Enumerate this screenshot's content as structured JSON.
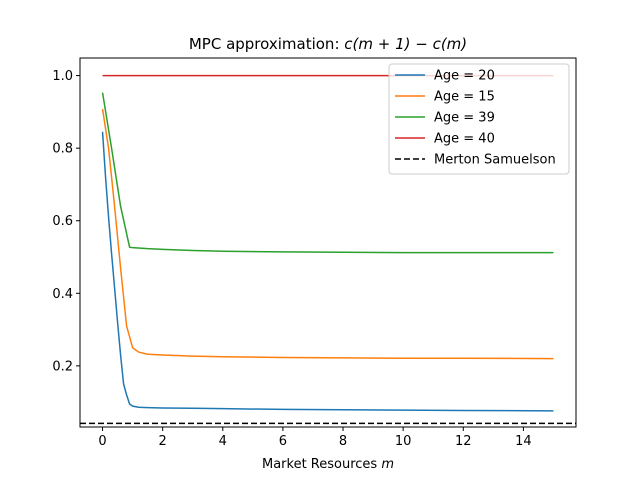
{
  "chart_data": {
    "type": "line",
    "title_prefix": "MPC approximation: ",
    "title_math": "c(m + 1) − c(m)",
    "xlabel_prefix": "Market Resources ",
    "xlabel_math": "m",
    "ylabel": "",
    "xlim": [
      -0.75,
      15.75
    ],
    "ylim": [
      0.0315,
      1.0485
    ],
    "x_ticks": [
      0,
      2,
      4,
      6,
      8,
      10,
      12,
      14
    ],
    "x_tick_labels": [
      "0",
      "2",
      "4",
      "6",
      "8",
      "10",
      "12",
      "14"
    ],
    "y_ticks": [
      0.2,
      0.4,
      0.6,
      0.8,
      1.0
    ],
    "y_tick_labels": [
      "0.2",
      "0.4",
      "0.6",
      "0.8",
      "1.0"
    ],
    "grid": false,
    "legend_position": "top-right",
    "series": [
      {
        "name": "Age = 20",
        "color": "#1f77b4",
        "style": "solid",
        "x": [
          0,
          0.1,
          0.2,
          0.3,
          0.4,
          0.5,
          0.6,
          0.7,
          0.8,
          0.9,
          1.0,
          1.2,
          1.5,
          2,
          3,
          4,
          6,
          8,
          10,
          12,
          15
        ],
        "y": [
          0.845,
          0.72,
          0.61,
          0.51,
          0.415,
          0.32,
          0.23,
          0.15,
          0.12,
          0.095,
          0.089,
          0.086,
          0.085,
          0.084,
          0.083,
          0.082,
          0.08,
          0.079,
          0.078,
          0.077,
          0.076
        ]
      },
      {
        "name": "Age = 15",
        "color": "#ff7f0e",
        "style": "solid",
        "x": [
          0,
          0.2,
          0.4,
          0.6,
          0.8,
          0.9,
          1.0,
          1.2,
          1.5,
          2,
          3,
          4,
          6,
          8,
          10,
          12,
          15
        ],
        "y": [
          0.908,
          0.8,
          0.64,
          0.47,
          0.31,
          0.28,
          0.25,
          0.238,
          0.232,
          0.23,
          0.227,
          0.225,
          0.223,
          0.222,
          0.221,
          0.221,
          0.22
        ]
      },
      {
        "name": "Age = 39",
        "color": "#2ca02c",
        "style": "solid",
        "x": [
          0,
          0.3,
          0.6,
          0.9,
          1.0,
          1.5,
          2,
          3,
          4,
          6,
          8,
          10,
          12,
          15
        ],
        "y": [
          0.953,
          0.8,
          0.64,
          0.527,
          0.526,
          0.523,
          0.521,
          0.518,
          0.516,
          0.514,
          0.513,
          0.512,
          0.512,
          0.512
        ]
      },
      {
        "name": "Age = 40",
        "color": "#d62728",
        "style": "solid",
        "x": [
          0,
          15
        ],
        "y": [
          1.0,
          1.0
        ]
      },
      {
        "name": "Merton Samuelson",
        "color": "#000000",
        "style": "dashed",
        "x": [
          -0.75,
          15.75
        ],
        "y": [
          0.0415,
          0.0415
        ]
      }
    ]
  }
}
